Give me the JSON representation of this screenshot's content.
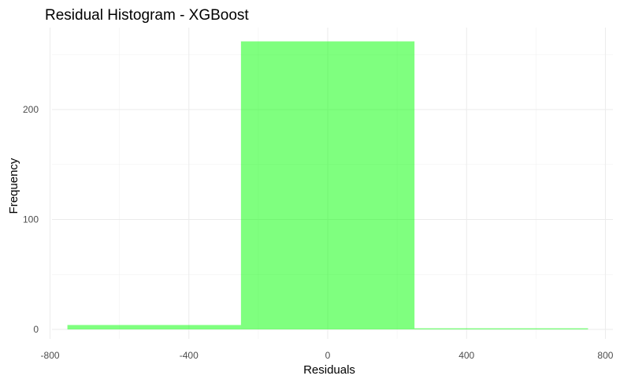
{
  "chart_data": {
    "type": "bar",
    "title": "Residual Histogram - XGBoost",
    "xlabel": "Residuals",
    "ylabel": "Frequency",
    "bins": [
      {
        "x_start": -750,
        "x_end": -250,
        "count": 4
      },
      {
        "x_start": -250,
        "x_end": 250,
        "count": 262
      },
      {
        "x_start": 250,
        "x_end": 750,
        "count": 1
      }
    ],
    "xlim": [
      -800,
      800
    ],
    "ylim": [
      0,
      262
    ],
    "x_ticks": [
      -800,
      -400,
      0,
      400,
      800
    ],
    "y_ticks": [
      0,
      100,
      200
    ],
    "x_tick_labels": [
      "-800",
      "-400",
      "0",
      "400",
      "800"
    ],
    "y_tick_labels": [
      "0",
      "100",
      "200"
    ],
    "bar_color": "#00FF00",
    "bar_opacity": 0.5,
    "grid": true,
    "theme": "minimal"
  }
}
